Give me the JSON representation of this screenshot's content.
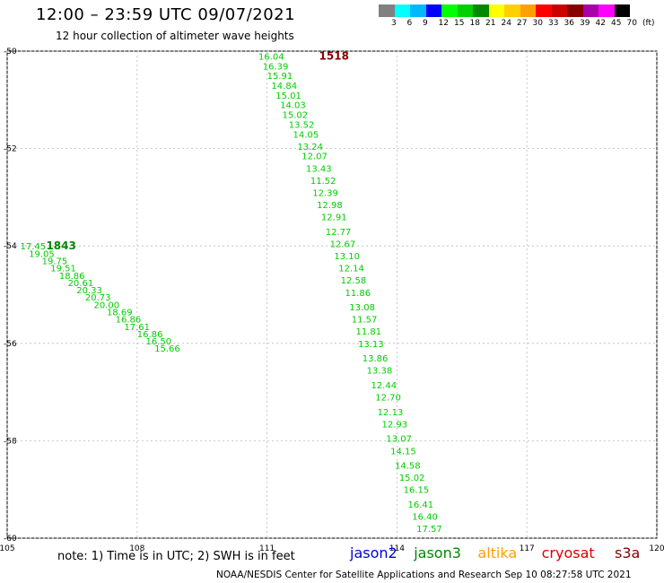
{
  "header": {
    "title": "12:00 – 23:59 UTC 09/07/2021",
    "subtitle": "12 hour collection of altimeter wave heights"
  },
  "color_scale": {
    "labels": [
      "3",
      "6",
      "9",
      "12",
      "15",
      "18",
      "21",
      "24",
      "27",
      "30",
      "33",
      "36",
      "39",
      "42",
      "45",
      "70",
      "(ft)"
    ],
    "colors": [
      "#808080",
      "#00ffff",
      "#00b8ff",
      "#0000ff",
      "#00ff00",
      "#00d000",
      "#008800",
      "#ffff00",
      "#ffd000",
      "#ffa000",
      "#ff0000",
      "#cc0000",
      "#880000",
      "#aa00aa",
      "#ff00ff",
      "#000000"
    ]
  },
  "footer": {
    "note": "note: 1) Time is in UTC; 2) SWH is in feet",
    "credit": "NOAA/NESDIS Center for Satellite Applications and Research   Sep 10 08:27:58 UTC 2021"
  },
  "legend": [
    {
      "name": "jason2",
      "color": "#0000dd"
    },
    {
      "name": "jason3",
      "color": "#008800"
    },
    {
      "name": "altika",
      "color": "#ffa000"
    },
    {
      "name": "cryosat",
      "color": "#dd0000"
    },
    {
      "name": "s3a",
      "color": "#880000"
    }
  ],
  "axes": {
    "lon_range": [
      105,
      120
    ],
    "lat_range": [
      -60,
      -50
    ],
    "lon_ticks": [
      "105",
      "108",
      "111",
      "114",
      "117",
      "120"
    ],
    "lat_ticks": [
      "-50",
      "-52",
      "-54",
      "-56",
      "-58",
      "-60"
    ],
    "grid": true
  },
  "chart_data": {
    "type": "scatter",
    "tracks": [
      {
        "id": "1518",
        "color": "#880000",
        "lon": 112.2,
        "lat": -50.1,
        "values": [
          [
            110.8,
            -50.1,
            "16.04"
          ],
          [
            110.9,
            -50.3,
            "16.39"
          ],
          [
            111.0,
            -50.5,
            "15.91"
          ],
          [
            111.1,
            -50.7,
            "14.84"
          ],
          [
            111.2,
            -50.9,
            "15.01"
          ],
          [
            111.3,
            -51.1,
            "14.03"
          ],
          [
            111.35,
            -51.3,
            "15.02"
          ],
          [
            111.5,
            -51.5,
            "13.52"
          ],
          [
            111.6,
            -51.7,
            "14.05"
          ],
          [
            111.7,
            -51.95,
            "13.24"
          ],
          [
            111.8,
            -52.15,
            "12.07"
          ],
          [
            111.9,
            -52.4,
            "13.43"
          ],
          [
            112.0,
            -52.65,
            "11.52"
          ],
          [
            112.05,
            -52.9,
            "12.39"
          ],
          [
            112.15,
            -53.15,
            "12.98"
          ],
          [
            112.25,
            -53.4,
            "12.91"
          ],
          [
            112.35,
            -53.7,
            "12.77"
          ],
          [
            112.45,
            -53.95,
            "12.67"
          ],
          [
            112.55,
            -54.2,
            "13.10"
          ],
          [
            112.65,
            -54.45,
            "12.14"
          ],
          [
            112.7,
            -54.7,
            "12.58"
          ],
          [
            112.8,
            -54.95,
            "11.86"
          ],
          [
            112.9,
            -55.25,
            "13.08"
          ],
          [
            112.95,
            -55.5,
            "11.57"
          ],
          [
            113.05,
            -55.75,
            "11.81"
          ],
          [
            113.1,
            -56.0,
            "13.13"
          ],
          [
            113.2,
            -56.3,
            "13.86"
          ],
          [
            113.3,
            -56.55,
            "13.38"
          ],
          [
            113.4,
            -56.85,
            "12.44"
          ],
          [
            113.5,
            -57.1,
            "12.70"
          ],
          [
            113.55,
            -57.4,
            "12.13"
          ],
          [
            113.65,
            -57.65,
            "12.93"
          ],
          [
            113.75,
            -57.95,
            "13.07"
          ],
          [
            113.85,
            -58.2,
            "14.15"
          ],
          [
            113.95,
            -58.5,
            "14.58"
          ],
          [
            114.05,
            -58.75,
            "15.02"
          ],
          [
            114.15,
            -59.0,
            "16.15"
          ],
          [
            114.25,
            -59.3,
            "16.41"
          ],
          [
            114.35,
            -59.55,
            "16.40"
          ],
          [
            114.45,
            -59.8,
            "17.57"
          ]
        ]
      },
      {
        "id": "1843",
        "color": "#008800",
        "lon": 105.9,
        "lat": -54.0,
        "values": [
          [
            105.3,
            -54.0,
            "17.45"
          ],
          [
            105.5,
            -54.15,
            "19.05"
          ],
          [
            105.8,
            -54.3,
            "19.75"
          ],
          [
            106.0,
            -54.45,
            "19.51"
          ],
          [
            106.2,
            -54.6,
            "18.86"
          ],
          [
            106.4,
            -54.75,
            "20.61"
          ],
          [
            106.6,
            -54.9,
            "20.33"
          ],
          [
            106.8,
            -55.05,
            "20.73"
          ],
          [
            107.0,
            -55.2,
            "20.00"
          ],
          [
            107.3,
            -55.35,
            "18.69"
          ],
          [
            107.5,
            -55.5,
            "16.86"
          ],
          [
            107.7,
            -55.65,
            "17.61"
          ],
          [
            108.0,
            -55.8,
            "16.86"
          ],
          [
            108.2,
            -55.95,
            "16.50"
          ],
          [
            108.4,
            -56.1,
            "15.66"
          ]
        ]
      }
    ],
    "series": [
      {
        "name": "jason3",
        "color": "#008800"
      },
      {
        "name": "altika",
        "color": "#ffa000"
      }
    ]
  }
}
